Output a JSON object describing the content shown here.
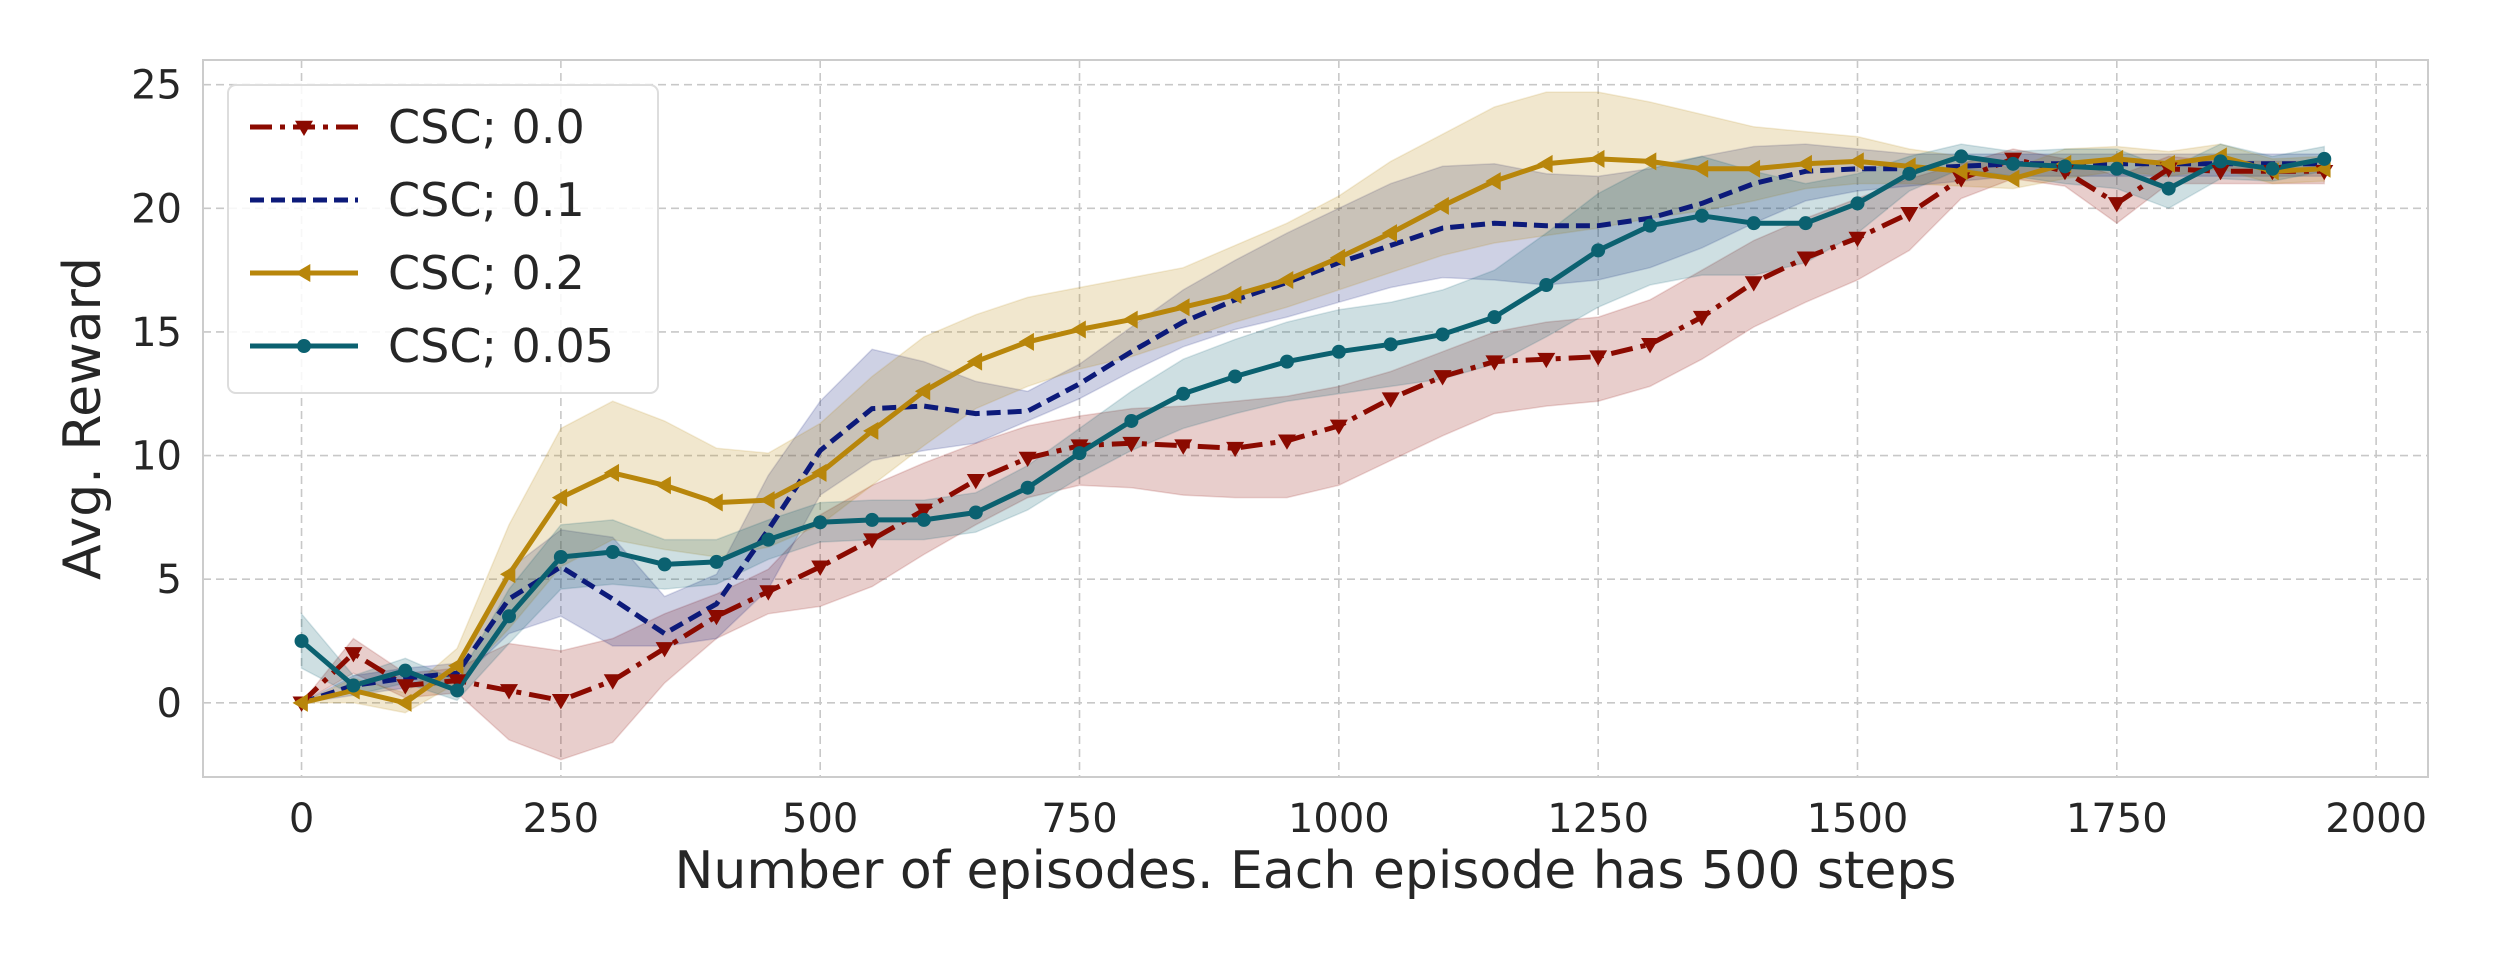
{
  "chart_data": {
    "type": "line",
    "title": "",
    "xlabel": "Number of episodes. Each episode has 500 steps",
    "ylabel": "Avg. Reward",
    "xlim": [
      -95,
      2050
    ],
    "ylim": [
      -3,
      26
    ],
    "xticks": [
      0,
      250,
      500,
      750,
      1000,
      1250,
      1500,
      1750,
      2000
    ],
    "yticks": [
      0,
      5,
      10,
      15,
      20,
      25
    ],
    "xtick_labels": [
      "0",
      "250",
      "500",
      "750",
      "1000",
      "1250",
      "1500",
      "1750",
      "2000"
    ],
    "ytick_labels": [
      "0",
      "5",
      "10",
      "15",
      "20",
      "25"
    ],
    "grid": true,
    "legend_position": "top-left",
    "x": [
      0,
      50,
      100,
      150,
      200,
      250,
      300,
      350,
      400,
      450,
      500,
      550,
      600,
      650,
      700,
      750,
      800,
      850,
      900,
      950,
      1000,
      1050,
      1100,
      1150,
      1200,
      1250,
      1300,
      1350,
      1400,
      1450,
      1500,
      1550,
      1600,
      1650,
      1700,
      1750,
      1800,
      1850,
      1900,
      1950
    ],
    "series": [
      {
        "name": "CSC; 0.0",
        "color": "#8b0a00",
        "line_style": "dashdot",
        "marker": "triangle-down",
        "values": [
          0,
          2.0,
          0.7,
          0.9,
          0.5,
          0.1,
          0.9,
          2.2,
          3.5,
          4.5,
          5.5,
          6.6,
          7.8,
          9.0,
          9.9,
          10.4,
          10.5,
          10.4,
          10.3,
          10.6,
          11.2,
          12.3,
          13.2,
          13.8,
          13.9,
          14.0,
          14.5,
          15.6,
          17.0,
          18.0,
          18.8,
          19.8,
          21.2,
          22.0,
          21.5,
          20.2,
          21.6,
          21.5,
          21.5,
          21.5
        ],
        "lower": [
          0,
          1.2,
          0.2,
          0.4,
          -1.5,
          -2.3,
          -1.6,
          0.8,
          2.6,
          3.6,
          3.9,
          4.7,
          6.0,
          7.2,
          8.3,
          8.8,
          8.7,
          8.4,
          8.3,
          8.3,
          8.8,
          9.8,
          10.8,
          11.7,
          12.0,
          12.2,
          12.8,
          13.9,
          15.2,
          16.2,
          17.1,
          18.3,
          20.4,
          21.2,
          20.9,
          19.4,
          21.0,
          21.0,
          21.0,
          21.0
        ],
        "upper": [
          0,
          2.6,
          1.2,
          1.4,
          2.4,
          2.1,
          2.6,
          3.6,
          4.4,
          5.4,
          7.6,
          8.8,
          9.7,
          10.5,
          11.2,
          11.6,
          11.9,
          12.0,
          12.2,
          12.4,
          12.8,
          13.4,
          14.2,
          15.0,
          15.4,
          15.6,
          16.3,
          17.5,
          18.7,
          19.6,
          20.4,
          21.2,
          21.8,
          22.4,
          22.0,
          21.3,
          22.1,
          21.9,
          21.9,
          21.9
        ]
      },
      {
        "name": "CSC; 0.1",
        "color": "#0c1a7a",
        "line_style": "dashed",
        "marker": "none",
        "values": [
          0,
          0.7,
          1.0,
          1.2,
          4.2,
          5.5,
          4.2,
          2.8,
          4.0,
          7.0,
          10.2,
          11.9,
          12.0,
          11.7,
          11.8,
          12.9,
          14.2,
          15.4,
          16.3,
          17.0,
          17.8,
          18.5,
          19.2,
          19.4,
          19.3,
          19.3,
          19.6,
          20.2,
          21.0,
          21.5,
          21.6,
          21.6,
          21.7,
          21.8,
          21.8,
          21.8,
          21.8,
          21.8,
          21.8,
          21.8
        ],
        "lower": [
          0,
          0.3,
          0.6,
          0.8,
          2.8,
          3.5,
          2.3,
          2.3,
          2.6,
          4.6,
          8.4,
          9.8,
          10.2,
          10.5,
          11.4,
          12.3,
          13.4,
          14.4,
          15.1,
          15.6,
          16.2,
          16.8,
          17.2,
          17.1,
          16.9,
          17.1,
          17.6,
          18.4,
          19.4,
          20.3,
          20.7,
          20.9,
          21.1,
          21.3,
          21.3,
          21.3,
          21.3,
          21.3,
          21.3,
          21.3
        ],
        "upper": [
          0,
          1.1,
          1.4,
          1.6,
          5.4,
          7.0,
          6.7,
          4.3,
          5.2,
          9.2,
          12.2,
          14.3,
          13.8,
          13.0,
          12.6,
          13.7,
          15.2,
          16.7,
          17.9,
          19.0,
          20.0,
          21.0,
          21.7,
          21.8,
          21.4,
          21.3,
          21.6,
          22.1,
          22.5,
          22.6,
          22.4,
          22.2,
          22.2,
          22.2,
          22.2,
          22.2,
          22.2,
          22.2,
          22.2,
          22.2
        ]
      },
      {
        "name": "CSC; 0.2",
        "color": "#b8860b",
        "line_style": "solid",
        "marker": "triangle-left",
        "values": [
          0,
          0.5,
          0.0,
          1.5,
          5.2,
          8.3,
          9.3,
          8.8,
          8.1,
          8.2,
          9.3,
          11.0,
          12.6,
          13.8,
          14.6,
          15.1,
          15.5,
          16.0,
          16.5,
          17.1,
          18.0,
          19.0,
          20.1,
          21.1,
          21.8,
          22.0,
          21.9,
          21.6,
          21.6,
          21.8,
          21.9,
          21.7,
          21.5,
          21.2,
          21.8,
          22.0,
          21.8,
          22.1,
          21.5,
          21.6
        ],
        "lower": [
          0,
          0.0,
          -0.4,
          0.8,
          3.0,
          5.5,
          6.6,
          6.2,
          5.9,
          6.3,
          7.2,
          8.8,
          10.4,
          11.9,
          12.8,
          13.5,
          14.0,
          14.7,
          15.4,
          16.0,
          16.7,
          17.4,
          18.1,
          18.6,
          18.9,
          19.2,
          19.6,
          19.9,
          20.3,
          20.8,
          21.0,
          21.0,
          20.9,
          20.8,
          21.2,
          21.5,
          21.3,
          21.6,
          21.0,
          21.1
        ],
        "upper": [
          0,
          1.0,
          0.4,
          2.2,
          7.2,
          11.1,
          12.2,
          11.4,
          10.3,
          10.1,
          11.3,
          13.2,
          14.8,
          15.7,
          16.4,
          16.8,
          17.2,
          17.6,
          18.5,
          19.4,
          20.5,
          21.9,
          23.0,
          24.1,
          24.7,
          24.7,
          24.3,
          23.8,
          23.3,
          23.1,
          22.9,
          22.4,
          22.1,
          21.6,
          22.4,
          22.5,
          22.3,
          22.6,
          22.0,
          22.1
        ]
      },
      {
        "name": "CSC; 0.05",
        "color": "#0b6170",
        "line_style": "solid",
        "marker": "circle",
        "values": [
          2.5,
          0.7,
          1.3,
          0.5,
          3.5,
          5.9,
          6.1,
          5.6,
          5.7,
          6.6,
          7.3,
          7.4,
          7.4,
          7.7,
          8.7,
          10.1,
          11.4,
          12.5,
          13.2,
          13.8,
          14.2,
          14.5,
          14.9,
          15.6,
          16.9,
          18.3,
          19.3,
          19.7,
          19.4,
          19.4,
          20.2,
          21.4,
          22.1,
          21.8,
          21.7,
          21.6,
          20.8,
          21.9,
          21.6,
          22.0
        ],
        "lower": [
          1.4,
          0.3,
          0.8,
          0.1,
          2.4,
          4.6,
          4.8,
          4.6,
          4.8,
          5.8,
          6.5,
          6.6,
          6.6,
          6.9,
          7.8,
          9.1,
          10.2,
          11.1,
          11.7,
          12.2,
          12.5,
          12.8,
          13.1,
          13.7,
          14.8,
          16.0,
          16.9,
          17.3,
          17.3,
          17.8,
          19.0,
          20.7,
          21.6,
          21.3,
          21.0,
          20.8,
          20.0,
          21.2,
          21.1,
          21.5
        ],
        "upper": [
          3.6,
          1.1,
          1.8,
          0.9,
          4.6,
          7.2,
          7.4,
          6.6,
          6.6,
          7.4,
          8.1,
          8.2,
          8.2,
          8.5,
          9.6,
          11.1,
          12.6,
          13.9,
          14.7,
          15.4,
          15.9,
          16.2,
          16.7,
          17.5,
          19.0,
          20.6,
          21.7,
          22.1,
          21.5,
          21.0,
          21.4,
          22.1,
          22.6,
          22.3,
          22.4,
          22.4,
          21.6,
          22.6,
          22.1,
          22.5
        ]
      }
    ]
  }
}
